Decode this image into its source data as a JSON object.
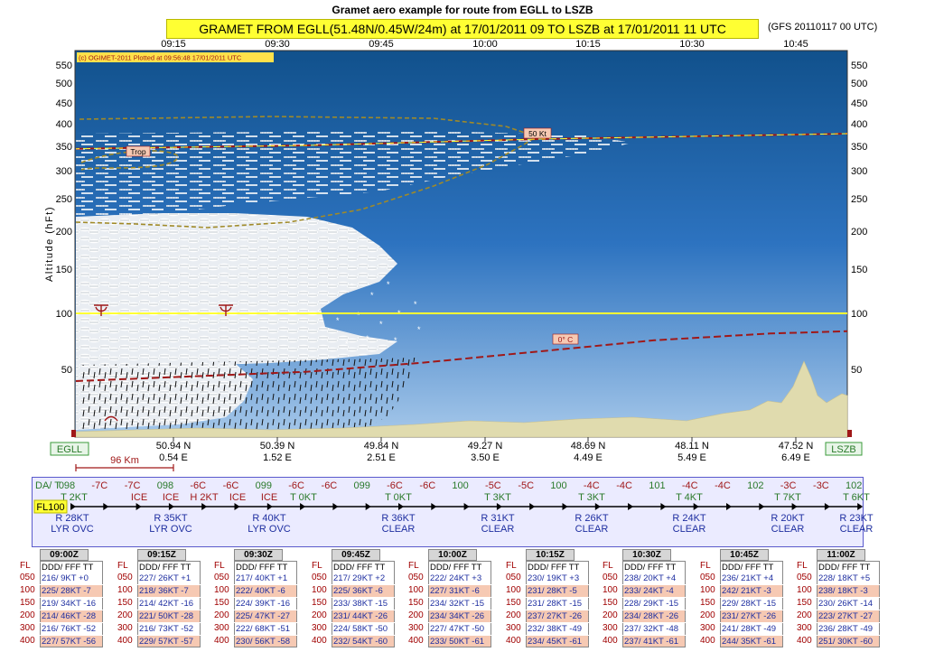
{
  "page_title": "Gramet aero example for route from EGLL to LSZB",
  "route_title": "GRAMET FROM EGLL(51.48N/0.45W/24m) at 17/01/2011 09   TO   LSZB at 17/01/2011 11 UTC",
  "model_run": "(GFS 20110117 00 UTC)",
  "copyright": "(c) OGIMET-2011 Plotted at 09:56:48 17/01/2011 UTC",
  "colors": {
    "sky_top": "#11518c",
    "sky_bottom": "#a6c8ea",
    "terrain": "#e0dbae",
    "tropopause": "#a01818",
    "freezing": "#a01818",
    "fl100": "#ffff33",
    "route_panel": "#ebebff"
  },
  "chart_data": {
    "type": "area",
    "ylabel": "Altitude (hFt)",
    "y_ticks": [
      50,
      100,
      150,
      200,
      250,
      300,
      350,
      400,
      450,
      500,
      550
    ],
    "y_scale": "pressure-altitude",
    "x_time_ticks": [
      "09:15",
      "09:30",
      "09:45",
      "10:00",
      "10:15",
      "10:30",
      "10:45"
    ],
    "positions": [
      {
        "lat": "50.94 N",
        "lon": "0.54 E"
      },
      {
        "lat": "50.39 N",
        "lon": "1.52 E"
      },
      {
        "lat": "49.84 N",
        "lon": "2.51 E"
      },
      {
        "lat": "49.27 N",
        "lon": "3.50 E"
      },
      {
        "lat": "48.69 N",
        "lon": "4.49 E"
      },
      {
        "lat": "48.11 N",
        "lon": "5.49 E"
      },
      {
        "lat": "47.52 N",
        "lon": "6.49 E"
      }
    ],
    "start_station": "EGLL",
    "end_station": "LSZB",
    "scale_label": "96 Km",
    "labels": {
      "wind": "50 Kt",
      "tropopause": "Trop",
      "freezing": "0° C"
    },
    "freezing_level": [
      {
        "x": 0.0,
        "y": 40
      },
      {
        "x": 0.15,
        "y": 44
      },
      {
        "x": 0.3,
        "y": 48
      },
      {
        "x": 0.45,
        "y": 56
      },
      {
        "x": 0.6,
        "y": 66
      },
      {
        "x": 0.75,
        "y": 76
      },
      {
        "x": 0.9,
        "y": 82
      },
      {
        "x": 1.0,
        "y": 84
      }
    ],
    "fl100_level": 100,
    "tropopause_level": [
      {
        "x": 0.0,
        "y": 345
      },
      {
        "x": 0.3,
        "y": 352
      },
      {
        "x": 0.6,
        "y": 366
      },
      {
        "x": 1.0,
        "y": 378
      }
    ]
  },
  "route": {
    "da_label": "DA/ T",
    "fl_label": "FL100",
    "top_row": [
      {
        "text": "098",
        "color": "#2a7a2a"
      },
      {
        "text": "-7C",
        "color": "#a01818"
      },
      {
        "text": "-7C",
        "color": "#a01818"
      },
      {
        "text": "098",
        "color": "#2a7a2a"
      },
      {
        "text": "-6C",
        "color": "#a01818"
      },
      {
        "text": "-6C",
        "color": "#a01818"
      },
      {
        "text": "099",
        "color": "#2a7a2a"
      },
      {
        "text": "-6C",
        "color": "#a01818"
      },
      {
        "text": "-6C",
        "color": "#a01818"
      },
      {
        "text": "099",
        "color": "#2a7a2a"
      },
      {
        "text": "-6C",
        "color": "#a01818"
      },
      {
        "text": "-6C",
        "color": "#a01818"
      },
      {
        "text": "100",
        "color": "#2a7a2a"
      },
      {
        "text": "-5C",
        "color": "#a01818"
      },
      {
        "text": "-5C",
        "color": "#a01818"
      },
      {
        "text": "100",
        "color": "#2a7a2a"
      },
      {
        "text": "-4C",
        "color": "#a01818"
      },
      {
        "text": "-4C",
        "color": "#a01818"
      },
      {
        "text": "101",
        "color": "#2a7a2a"
      },
      {
        "text": "-4C",
        "color": "#a01818"
      },
      {
        "text": "-4C",
        "color": "#a01818"
      },
      {
        "text": "102",
        "color": "#2a7a2a"
      },
      {
        "text": "-3C",
        "color": "#a01818"
      },
      {
        "text": "-3C",
        "color": "#a01818"
      },
      {
        "text": "102",
        "color": "#2a7a2a"
      }
    ],
    "second_row": [
      {
        "text": "T 2KT",
        "color": "#2a7a2a"
      },
      {
        "text": "ICE",
        "color": "#a01818"
      },
      {
        "text": "ICE",
        "color": "#a01818"
      },
      {
        "text": "H 2KT",
        "color": "#a01818"
      },
      {
        "text": "ICE",
        "color": "#a01818"
      },
      {
        "text": "ICE",
        "color": "#a01818"
      },
      {
        "text": "T 0KT",
        "color": "#2a7a2a"
      },
      {
        "text": "T 0KT",
        "color": "#2a7a2a"
      },
      {
        "text": "T 3KT",
        "color": "#2a7a2a"
      },
      {
        "text": "T 3KT",
        "color": "#2a7a2a"
      },
      {
        "text": "T 4KT",
        "color": "#2a7a2a"
      },
      {
        "text": "T 7KT",
        "color": "#2a7a2a"
      },
      {
        "text": "T 6KT",
        "color": "#2a7a2a"
      }
    ],
    "lower_row": [
      {
        "wind": "R 28KT",
        "cond": "LYR OVC"
      },
      {
        "wind": "R 35KT",
        "cond": "LYR OVC"
      },
      {
        "wind": "R 40KT",
        "cond": "LYR OVC"
      },
      {
        "wind": "R 36KT",
        "cond": "CLEAR"
      },
      {
        "wind": "R 31KT",
        "cond": "CLEAR"
      },
      {
        "wind": "R 26KT",
        "cond": "CLEAR"
      },
      {
        "wind": "R 24KT",
        "cond": "CLEAR"
      },
      {
        "wind": "R 20KT",
        "cond": "CLEAR"
      },
      {
        "wind": "R 23KT",
        "cond": "CLEAR"
      }
    ]
  },
  "tables": {
    "fl_header": "FL",
    "col_header": "DDD/ FFF TT",
    "fl_levels": [
      "050",
      "100",
      "150",
      "200",
      "300",
      "400"
    ],
    "items": [
      {
        "time": "09:00Z",
        "rows": [
          "216/ 9KT +0",
          "225/ 28KT -7",
          "219/ 34KT -16",
          "214/ 46KT -28",
          "216/ 76KT -52",
          "227/ 57KT -56"
        ]
      },
      {
        "time": "09:15Z",
        "rows": [
          "227/ 26KT +1",
          "218/ 36KT -7",
          "214/ 42KT -16",
          "221/ 50KT -28",
          "216/ 73KT -52",
          "229/ 57KT -57"
        ]
      },
      {
        "time": "09:30Z",
        "rows": [
          "217/ 40KT +1",
          "222/ 40KT -6",
          "224/ 39KT -16",
          "225/ 47KT -27",
          "222/ 68KT -51",
          "230/ 56KT -58"
        ]
      },
      {
        "time": "09:45Z",
        "rows": [
          "217/ 29KT +2",
          "225/ 36KT -6",
          "233/ 38KT -15",
          "231/ 44KT -26",
          "224/ 58KT -50",
          "232/ 54KT -60"
        ]
      },
      {
        "time": "10:00Z",
        "rows": [
          "222/ 24KT +3",
          "227/ 31KT -6",
          "234/ 32KT -15",
          "234/ 34KT -26",
          "227/ 47KT -50",
          "233/ 50KT -61"
        ]
      },
      {
        "time": "10:15Z",
        "rows": [
          "230/ 19KT +3",
          "231/ 28KT -5",
          "231/ 28KT -15",
          "237/ 27KT -26",
          "232/ 38KT -49",
          "234/ 45KT -61"
        ]
      },
      {
        "time": "10:30Z",
        "rows": [
          "238/ 20KT +4",
          "233/ 24KT -4",
          "228/ 29KT -15",
          "234/ 28KT -26",
          "237/ 32KT -48",
          "237/ 41KT -61"
        ]
      },
      {
        "time": "10:45Z",
        "rows": [
          "236/ 21KT +4",
          "242/ 21KT -3",
          "229/ 28KT -15",
          "231/ 27KT -26",
          "241/ 28KT -49",
          "244/ 35KT -61"
        ]
      },
      {
        "time": "11:00Z",
        "rows": [
          "228/ 18KT +5",
          "238/ 18KT -3",
          "230/ 26KT -14",
          "223/ 27KT -27",
          "236/ 28KT -49",
          "251/ 30KT -60"
        ]
      }
    ]
  }
}
